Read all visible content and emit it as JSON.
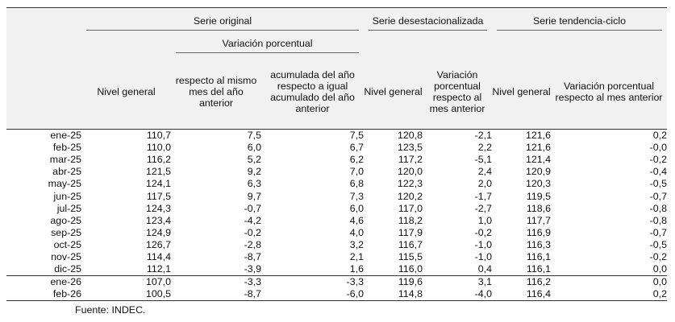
{
  "header": {
    "serie_original": "Serie original",
    "variacion_porcentual": "Variación porcentual",
    "serie_desest": "Serie desestacionalizada",
    "serie_tendencia": "Serie tendencia-ciclo",
    "nivel_general": "Nivel general",
    "respecto_mes": "respecto al mismo mes del año anterior",
    "acumulada": "acumulada del año respecto a igual acumulado del año anterior",
    "desest_nivel": "Nivel general",
    "desest_var": "Variación porcentual respecto al mes anterior",
    "tend_nivel": "Nivel general",
    "tend_var": "Variación porcentual respecto al mes anterior"
  },
  "rows": [
    {
      "mes": "ene-25",
      "nivel": "110,7",
      "var_mes": "7,5",
      "acum": "7,5",
      "desest": "120,8",
      "desest_var": "-2,1",
      "tend": "121,6",
      "tend_var": "0,2"
    },
    {
      "mes": "feb-25",
      "nivel": "110,0",
      "var_mes": "6,0",
      "acum": "6,7",
      "desest": "123,5",
      "desest_var": "2,2",
      "tend": "121,6",
      "tend_var": "-0,0"
    },
    {
      "mes": "mar-25",
      "nivel": "116,2",
      "var_mes": "5,2",
      "acum": "6,2",
      "desest": "117,2",
      "desest_var": "-5,1",
      "tend": "121,4",
      "tend_var": "-0,2"
    },
    {
      "mes": "abr-25",
      "nivel": "121,5",
      "var_mes": "9,2",
      "acum": "7,0",
      "desest": "120,0",
      "desest_var": "2,4",
      "tend": "120,9",
      "tend_var": "-0,4"
    },
    {
      "mes": "may-25",
      "nivel": "124,1",
      "var_mes": "6,3",
      "acum": "6,8",
      "desest": "122,3",
      "desest_var": "2,0",
      "tend": "120,3",
      "tend_var": "-0,5"
    },
    {
      "mes": "jun-25",
      "nivel": "117,5",
      "var_mes": "9,7",
      "acum": "7,3",
      "desest": "120,2",
      "desest_var": "-1,7",
      "tend": "119,5",
      "tend_var": "-0,7"
    },
    {
      "mes": "jul-25",
      "nivel": "124,3",
      "var_mes": "-0,7",
      "acum": "6,0",
      "desest": "117,0",
      "desest_var": "-2,7",
      "tend": "118,6",
      "tend_var": "-0,8"
    },
    {
      "mes": "ago-25",
      "nivel": "123,4",
      "var_mes": "-4,2",
      "acum": "4,6",
      "desest": "118,2",
      "desest_var": "1,0",
      "tend": "117,7",
      "tend_var": "-0,8"
    },
    {
      "mes": "sep-25",
      "nivel": "124,9",
      "var_mes": "-0,2",
      "acum": "4,0",
      "desest": "117,9",
      "desest_var": "-0,2",
      "tend": "116,9",
      "tend_var": "-0,7"
    },
    {
      "mes": "oct-25",
      "nivel": "126,7",
      "var_mes": "-2,8",
      "acum": "3,2",
      "desest": "116,7",
      "desest_var": "-1,0",
      "tend": "116,3",
      "tend_var": "-0,5"
    },
    {
      "mes": "nov-25",
      "nivel": "114,4",
      "var_mes": "-8,7",
      "acum": "2,1",
      "desest": "115,5",
      "desest_var": "-1,0",
      "tend": "116,1",
      "tend_var": "-0,2"
    },
    {
      "mes": "dic-25",
      "nivel": "112,1",
      "var_mes": "-3,9",
      "acum": "1,6",
      "desest": "116,0",
      "desest_var": "0,4",
      "tend": "116,1",
      "tend_var": "0,0"
    },
    {
      "mes": "ene-26",
      "nivel": "107,0",
      "var_mes": "-3,3",
      "acum": "-3,3",
      "desest": "119,6",
      "desest_var": "3,1",
      "tend": "116,2",
      "tend_var": "0,0"
    },
    {
      "mes": "feb-26",
      "nivel": "100,5",
      "var_mes": "-8,7",
      "acum": "-6,0",
      "desest": "114,8",
      "desest_var": "-4,0",
      "tend": "116,4",
      "tend_var": "0,2"
    }
  ],
  "source": "Fuente: INDEC."
}
